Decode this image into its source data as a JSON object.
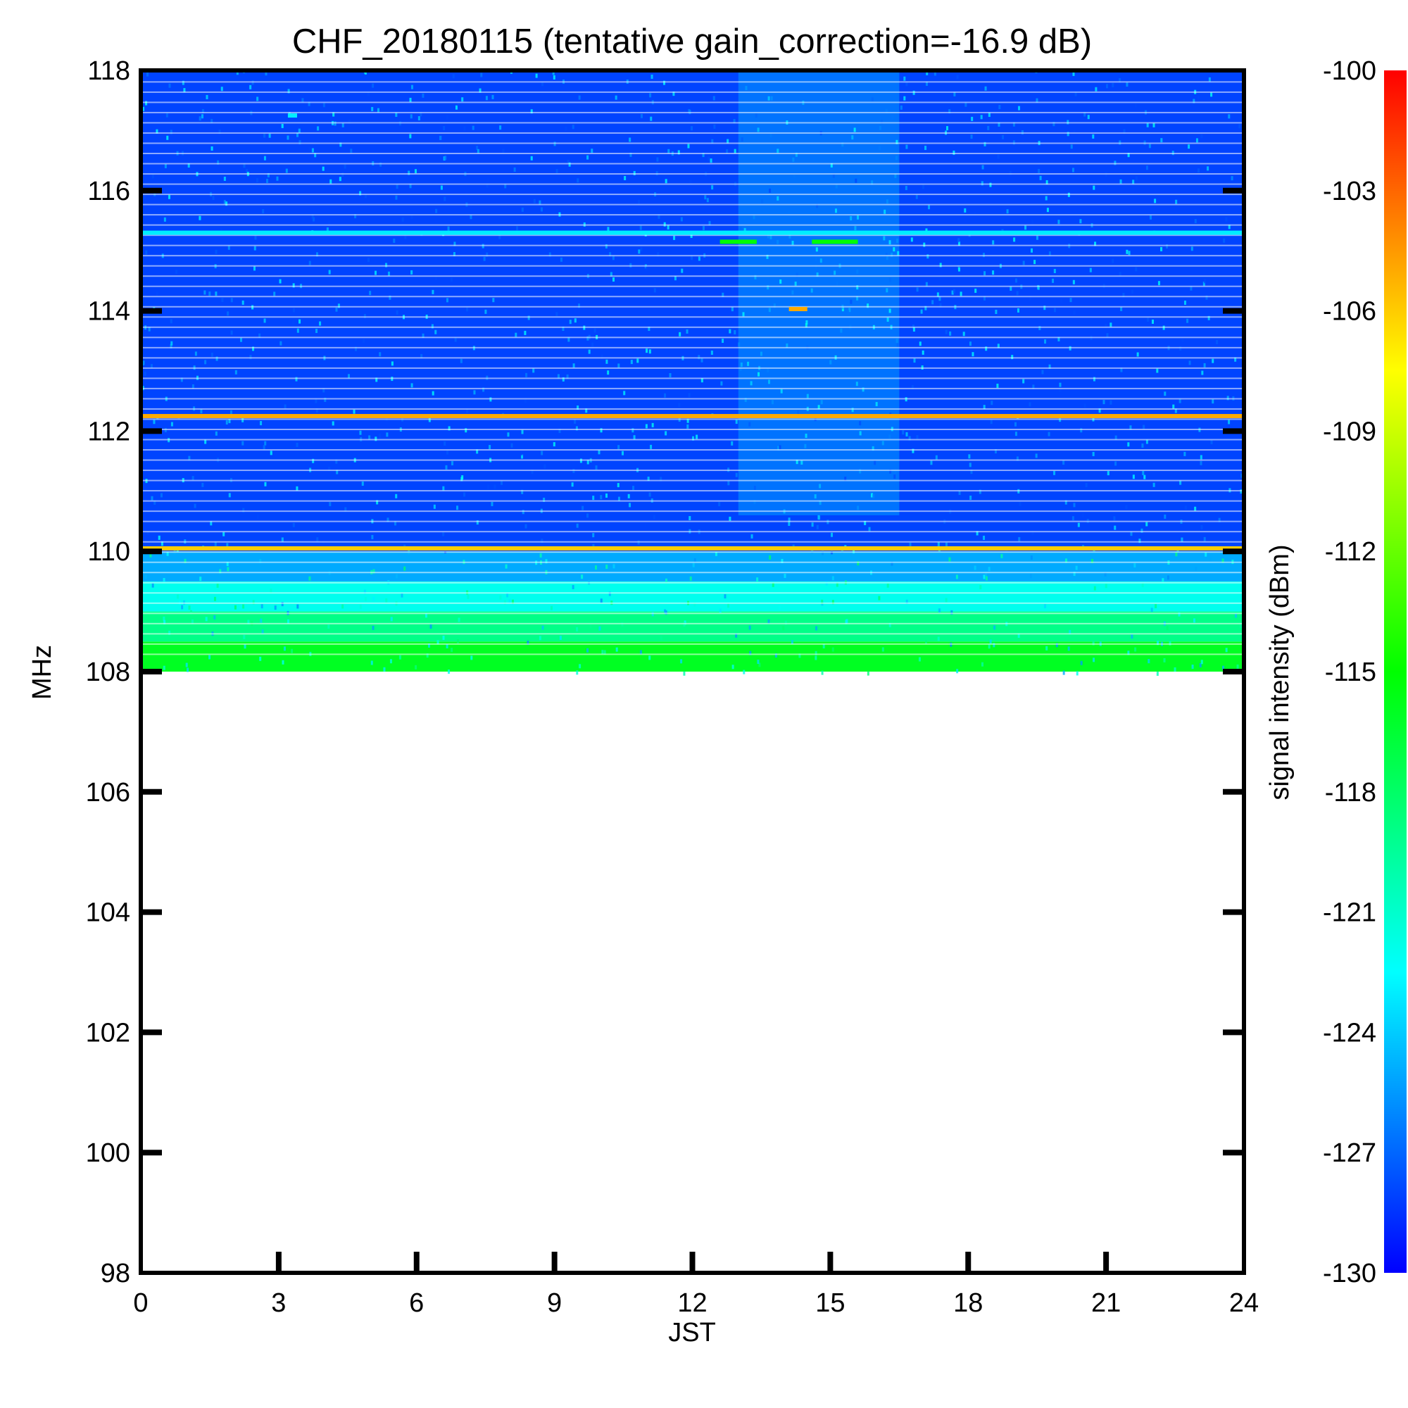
{
  "chart_data": {
    "type": "heatmap",
    "title": "CHF_20180115 (tentative gain_correction=-16.9 dB)",
    "xlabel": "JST",
    "ylabel": "MHz",
    "xlim": [
      0,
      24
    ],
    "ylim": [
      98,
      118
    ],
    "xticks": [
      0,
      3,
      6,
      9,
      12,
      15,
      18,
      21,
      24
    ],
    "yticks": [
      98,
      100,
      102,
      104,
      106,
      108,
      110,
      112,
      114,
      116,
      118
    ],
    "data_extent": {
      "x": [
        0,
        24
      ],
      "y": [
        108,
        118.2
      ]
    },
    "colorbar": {
      "label": "signal intensity (dBm)",
      "range": [
        -130,
        -100
      ],
      "ticks": [
        -100,
        -103,
        -106,
        -109,
        -112,
        -115,
        -118,
        -121,
        -124,
        -127,
        -130
      ],
      "colors": [
        "#0000ff",
        "#0080ff",
        "#00ffff",
        "#00ff80",
        "#00ff00",
        "#80ff00",
        "#ffff00",
        "#ff8000",
        "#ff0000"
      ]
    },
    "background_levels": [
      {
        "freq_range": [
          108.0,
          108.5
        ],
        "dbm": -116
      },
      {
        "freq_range": [
          108.5,
          109.0
        ],
        "dbm": -119
      },
      {
        "freq_range": [
          109.0,
          109.5
        ],
        "dbm": -122
      },
      {
        "freq_range": [
          109.5,
          110.0
        ],
        "dbm": -125
      },
      {
        "freq_range": [
          110.0,
          118.2
        ],
        "dbm": -128
      }
    ],
    "bands": [
      {
        "freq": 110.05,
        "time_range": [
          0,
          24
        ],
        "dbm": -106
      },
      {
        "freq": 112.25,
        "time_range": [
          0,
          24
        ],
        "dbm": -105
      },
      {
        "freq": 115.3,
        "time_range": [
          0,
          24
        ],
        "dbm": -123
      },
      {
        "freq": 115.15,
        "time_range": [
          12.6,
          13.4
        ],
        "dbm": -115
      },
      {
        "freq": 115.15,
        "time_range": [
          14.6,
          15.6
        ],
        "dbm": -115
      },
      {
        "freq": 114.03,
        "time_range": [
          14.1,
          14.5
        ],
        "dbm": -105
      },
      {
        "freq": 117.25,
        "time_range": [
          3.2,
          3.4
        ],
        "dbm": -123
      }
    ],
    "enhanced_region": {
      "time_range": [
        13,
        16.5
      ],
      "freq_range": [
        110.6,
        118.2
      ],
      "dbm": -124
    }
  }
}
